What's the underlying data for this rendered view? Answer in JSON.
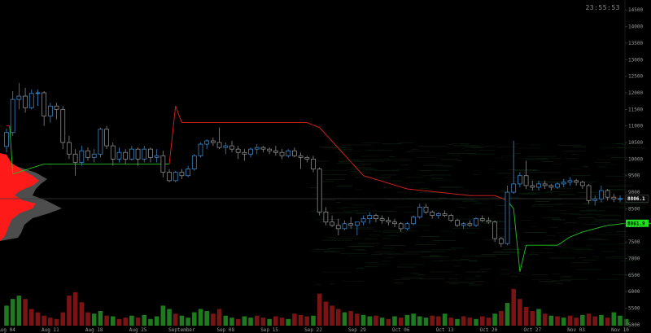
{
  "clock": "23:55:53",
  "chart_data": {
    "type": "line",
    "y_axis": {
      "ticks": [
        14500,
        14000,
        13500,
        13000,
        12500,
        12000,
        11500,
        11000,
        10500,
        10000,
        9500,
        9000,
        8500,
        8000,
        7500,
        7000,
        6500,
        6000,
        5500,
        5000
      ],
      "ylim": [
        4850,
        14800
      ]
    },
    "x_axis": {
      "labels": [
        {
          "text": "Aug 04",
          "day": 1
        },
        {
          "text": "Aug 11",
          "day": 8
        },
        {
          "text": "Aug 18",
          "day": 15
        },
        {
          "text": "Aug 25",
          "day": 22
        },
        {
          "text": "September",
          "day": 29
        },
        {
          "text": "Sep 08",
          "day": 36
        },
        {
          "text": "Sep 15",
          "day": 43
        },
        {
          "text": "Sep 22",
          "day": 50
        },
        {
          "text": "Sep 29",
          "day": 57
        },
        {
          "text": "Oct 06",
          "day": 64
        },
        {
          "text": "Oct 13",
          "day": 71
        },
        {
          "text": "Oct 20",
          "day": 78
        },
        {
          "text": "Oct 27",
          "day": 85
        },
        {
          "text": "Nov 03",
          "day": 92
        },
        {
          "text": "Nov 10",
          "day": 99
        }
      ]
    },
    "current_price": {
      "value": 8806.1,
      "label": "8806.1"
    },
    "stop_price": {
      "value": 8061.9,
      "label": "8061.9"
    },
    "colors": {
      "up": "#3a86c8",
      "down": "#8a8a8a",
      "stop_green": "#22c022",
      "stop_red": "#e02020",
      "vol_up": "#1f7a1f",
      "vol_down": "#7a1414",
      "label_green": "#22dd22"
    },
    "candles": [
      [
        10380,
        10920,
        10200,
        10800
      ],
      [
        10800,
        12050,
        10700,
        11800
      ],
      [
        11800,
        12300,
        11500,
        11900
      ],
      [
        11900,
        12150,
        11400,
        11550
      ],
      [
        11550,
        12100,
        11500,
        11980
      ],
      [
        11980,
        12100,
        11600,
        12000
      ],
      [
        12000,
        12050,
        11000,
        11300
      ],
      [
        11300,
        11700,
        11100,
        11600
      ],
      [
        11600,
        11700,
        11200,
        11500
      ],
      [
        11500,
        11600,
        10300,
        10500
      ],
      [
        10500,
        10700,
        10000,
        10150
      ],
      [
        10150,
        10300,
        9500,
        9900
      ],
      [
        9900,
        10400,
        9800,
        10250
      ],
      [
        10250,
        10350,
        9950,
        10050
      ],
      [
        10050,
        10300,
        9900,
        10150
      ],
      [
        10150,
        10950,
        10050,
        10900
      ],
      [
        10900,
        11000,
        10300,
        10400
      ],
      [
        10400,
        10500,
        9800,
        10000
      ],
      [
        10000,
        10350,
        9900,
        10200
      ],
      [
        10200,
        10300,
        9850,
        10000
      ],
      [
        10000,
        10400,
        9950,
        10300
      ],
      [
        10300,
        10350,
        9800,
        10000
      ],
      [
        10000,
        10400,
        9900,
        10300
      ],
      [
        10300,
        10350,
        9900,
        10050
      ],
      [
        10050,
        10300,
        9900,
        10100
      ],
      [
        10100,
        10250,
        9450,
        9600
      ],
      [
        9600,
        9700,
        9300,
        9350
      ],
      [
        9350,
        9650,
        9300,
        9600
      ],
      [
        9600,
        9700,
        9400,
        9500
      ],
      [
        9500,
        9800,
        9450,
        9700
      ],
      [
        9700,
        10150,
        9650,
        10100
      ],
      [
        10100,
        10500,
        10050,
        10450
      ],
      [
        10450,
        10600,
        10300,
        10550
      ],
      [
        10550,
        10650,
        10400,
        10500
      ],
      [
        10500,
        10950,
        10300,
        10350
      ],
      [
        10350,
        10500,
        10150,
        10400
      ],
      [
        10400,
        10550,
        10200,
        10300
      ],
      [
        10300,
        10400,
        10000,
        10200
      ],
      [
        10200,
        10300,
        9950,
        10150
      ],
      [
        10150,
        10350,
        10050,
        10300
      ],
      [
        10300,
        10450,
        10150,
        10350
      ],
      [
        10350,
        10400,
        10200,
        10300
      ],
      [
        10300,
        10350,
        10150,
        10250
      ],
      [
        10250,
        10400,
        10100,
        10200
      ],
      [
        10200,
        10300,
        10000,
        10100
      ],
      [
        10100,
        10300,
        10050,
        10250
      ],
      [
        10250,
        10350,
        10050,
        10100
      ],
      [
        10100,
        10200,
        9700,
        10050
      ],
      [
        10050,
        10100,
        9900,
        10000
      ],
      [
        10000,
        10100,
        9600,
        9700
      ],
      [
        9700,
        9750,
        8300,
        8400
      ],
      [
        8400,
        8550,
        8000,
        8100
      ],
      [
        8100,
        8300,
        7950,
        8000
      ],
      [
        8000,
        8200,
        7700,
        7900
      ],
      [
        7900,
        8150,
        7850,
        8050
      ],
      [
        8050,
        8250,
        7900,
        8000
      ],
      [
        8000,
        8100,
        7700,
        8100
      ],
      [
        8100,
        8300,
        8000,
        8200
      ],
      [
        8200,
        8400,
        8050,
        8300
      ],
      [
        8300,
        8350,
        8100,
        8200
      ],
      [
        8200,
        8300,
        8050,
        8150
      ],
      [
        8150,
        8250,
        8000,
        8100
      ],
      [
        8100,
        8200,
        7950,
        8050
      ],
      [
        8050,
        8100,
        7800,
        7900
      ],
      [
        7900,
        8100,
        7850,
        8050
      ],
      [
        8050,
        8300,
        8000,
        8250
      ],
      [
        8250,
        8650,
        8200,
        8550
      ],
      [
        8550,
        8650,
        8350,
        8400
      ],
      [
        8400,
        8450,
        8200,
        8300
      ],
      [
        8300,
        8400,
        8200,
        8350
      ],
      [
        8350,
        8450,
        8250,
        8300
      ],
      [
        8300,
        8350,
        8100,
        8150
      ],
      [
        8150,
        8200,
        7950,
        8000
      ],
      [
        8000,
        8100,
        7900,
        8050
      ],
      [
        8050,
        8150,
        7950,
        8000
      ],
      [
        8000,
        8250,
        7950,
        8200
      ],
      [
        8200,
        8300,
        8100,
        8150
      ],
      [
        8150,
        8250,
        8050,
        8100
      ],
      [
        8100,
        8150,
        7500,
        7600
      ],
      [
        7600,
        7650,
        7350,
        7450
      ],
      [
        7450,
        9200,
        7400,
        9000
      ],
      [
        9000,
        10550,
        8950,
        9250
      ],
      [
        9250,
        9600,
        9150,
        9500
      ],
      [
        9500,
        9950,
        9100,
        9200
      ],
      [
        9200,
        9350,
        9050,
        9150
      ],
      [
        9150,
        9350,
        9050,
        9250
      ],
      [
        9250,
        9350,
        9100,
        9200
      ],
      [
        9200,
        9250,
        9050,
        9150
      ],
      [
        9150,
        9300,
        9100,
        9250
      ],
      [
        9250,
        9400,
        9150,
        9300
      ],
      [
        9300,
        9450,
        9200,
        9350
      ],
      [
        9350,
        9400,
        9200,
        9300
      ],
      [
        9300,
        9350,
        9100,
        9200
      ],
      [
        9200,
        9250,
        8650,
        8750
      ],
      [
        8750,
        8900,
        8600,
        8800
      ],
      [
        8800,
        9200,
        8700,
        9050
      ],
      [
        9050,
        9100,
        8750,
        8850
      ],
      [
        8850,
        8950,
        8700,
        8800
      ],
      [
        8800,
        8900,
        8700,
        8806.1
      ]
    ],
    "trailing_stop": [
      [
        1,
        11000
      ],
      [
        1.5,
        11000
      ],
      [
        2,
        9550
      ],
      [
        7,
        9850
      ],
      [
        27,
        9850
      ],
      [
        28,
        11600
      ],
      [
        29,
        11100
      ],
      [
        49,
        11100
      ],
      [
        51,
        10950
      ],
      [
        58,
        9500
      ],
      [
        65,
        9100
      ],
      [
        75,
        8900
      ],
      [
        79,
        8900
      ],
      [
        81,
        8750
      ],
      [
        82,
        8500
      ],
      [
        83,
        6600
      ],
      [
        84,
        7400
      ],
      [
        89,
        7400
      ],
      [
        91,
        7650
      ],
      [
        93,
        7800
      ],
      [
        95,
        7900
      ],
      [
        97,
        8000
      ],
      [
        100,
        8061.9
      ],
      [
        104,
        8061.9
      ]
    ],
    "volume": [
      [
        30,
        1
      ],
      [
        40,
        1
      ],
      [
        45,
        1
      ],
      [
        40,
        0
      ],
      [
        25,
        0
      ],
      [
        20,
        0
      ],
      [
        15,
        0
      ],
      [
        12,
        0
      ],
      [
        10,
        0
      ],
      [
        20,
        0
      ],
      [
        45,
        0
      ],
      [
        50,
        0
      ],
      [
        35,
        0
      ],
      [
        20,
        0
      ],
      [
        18,
        1
      ],
      [
        22,
        1
      ],
      [
        15,
        0
      ],
      [
        14,
        1
      ],
      [
        10,
        0
      ],
      [
        12,
        0
      ],
      [
        15,
        1
      ],
      [
        12,
        0
      ],
      [
        16,
        1
      ],
      [
        10,
        1
      ],
      [
        14,
        1
      ],
      [
        30,
        1
      ],
      [
        25,
        1
      ],
      [
        18,
        0
      ],
      [
        15,
        1
      ],
      [
        12,
        1
      ],
      [
        20,
        1
      ],
      [
        25,
        1
      ],
      [
        22,
        1
      ],
      [
        18,
        0
      ],
      [
        25,
        0
      ],
      [
        15,
        1
      ],
      [
        12,
        1
      ],
      [
        10,
        0
      ],
      [
        14,
        1
      ],
      [
        12,
        1
      ],
      [
        15,
        0
      ],
      [
        12,
        0
      ],
      [
        10,
        1
      ],
      [
        14,
        0
      ],
      [
        12,
        0
      ],
      [
        10,
        1
      ],
      [
        18,
        0
      ],
      [
        16,
        0
      ],
      [
        14,
        0
      ],
      [
        15,
        1
      ],
      [
        48,
        0
      ],
      [
        36,
        0
      ],
      [
        30,
        0
      ],
      [
        25,
        0
      ],
      [
        20,
        1
      ],
      [
        22,
        0
      ],
      [
        18,
        0
      ],
      [
        16,
        1
      ],
      [
        14,
        1
      ],
      [
        15,
        0
      ],
      [
        12,
        1
      ],
      [
        10,
        0
      ],
      [
        14,
        1
      ],
      [
        12,
        0
      ],
      [
        16,
        1
      ],
      [
        18,
        1
      ],
      [
        14,
        1
      ],
      [
        12,
        1
      ],
      [
        15,
        0
      ],
      [
        14,
        0
      ],
      [
        18,
        1
      ],
      [
        12,
        0
      ],
      [
        10,
        1
      ],
      [
        14,
        0
      ],
      [
        12,
        0
      ],
      [
        10,
        1
      ],
      [
        14,
        0
      ],
      [
        12,
        0
      ],
      [
        18,
        1
      ],
      [
        22,
        0
      ],
      [
        34,
        1
      ],
      [
        55,
        0
      ],
      [
        40,
        0
      ],
      [
        28,
        0
      ],
      [
        22,
        0
      ],
      [
        25,
        1
      ],
      [
        18,
        0
      ],
      [
        15,
        1
      ],
      [
        14,
        0
      ],
      [
        12,
        1
      ],
      [
        15,
        0
      ],
      [
        12,
        0
      ],
      [
        16,
        1
      ],
      [
        18,
        0
      ],
      [
        14,
        0
      ],
      [
        16,
        1
      ],
      [
        12,
        0
      ],
      [
        20,
        1
      ],
      [
        15,
        1
      ],
      [
        10,
        1
      ]
    ]
  }
}
